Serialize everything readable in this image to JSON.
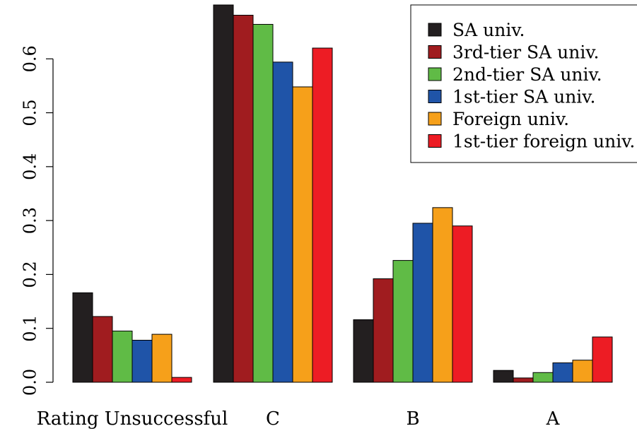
{
  "chart_data": {
    "type": "bar",
    "title": "",
    "xlabel": "",
    "ylabel": "",
    "categories": [
      "Rating Unsuccessful",
      "C",
      "B",
      "A"
    ],
    "ylim": [
      0,
      0.7
    ],
    "yticks": [
      "0.0",
      "0.1",
      "0.2",
      "0.3",
      "0.4",
      "0.5",
      "0.6"
    ],
    "yaxis_label_orientation": "rotated-vertical",
    "legend_placement": "top-right",
    "grid": false,
    "series": [
      {
        "name": "SA univ.",
        "color": "#231f20",
        "values": [
          0.166,
          0.7,
          0.116,
          0.022
        ]
      },
      {
        "name": "3rd-tier SA univ.",
        "color": "#a01c1f",
        "values": [
          0.122,
          0.681,
          0.192,
          0.008
        ]
      },
      {
        "name": "2nd-tier SA univ.",
        "color": "#60bb46",
        "values": [
          0.095,
          0.664,
          0.226,
          0.018
        ]
      },
      {
        "name": "1st-tier SA univ.",
        "color": "#1f54a8",
        "values": [
          0.078,
          0.594,
          0.295,
          0.036
        ]
      },
      {
        "name": "Foreign univ.",
        "color": "#f6a01a",
        "values": [
          0.089,
          0.548,
          0.324,
          0.041
        ]
      },
      {
        "name": "1st-tier foreign univ.",
        "color": "#ed1c24",
        "values": [
          0.009,
          0.62,
          0.29,
          0.084
        ]
      }
    ]
  }
}
